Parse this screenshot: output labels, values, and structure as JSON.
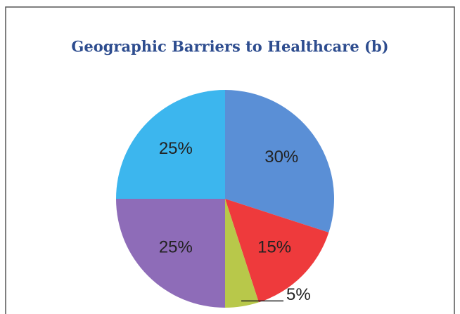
{
  "chart_data": {
    "type": "pie",
    "title": "Geographic Barriers to Healthcare (b)",
    "values": [
      30,
      15,
      5,
      25,
      25
    ],
    "value_labels": [
      "30%",
      "15%",
      "5%",
      "25%",
      "25%"
    ],
    "colors": [
      "#5a8fd6",
      "#ee3a3c",
      "#b8c84a",
      "#8e6cb8",
      "#3cb6ee"
    ]
  }
}
